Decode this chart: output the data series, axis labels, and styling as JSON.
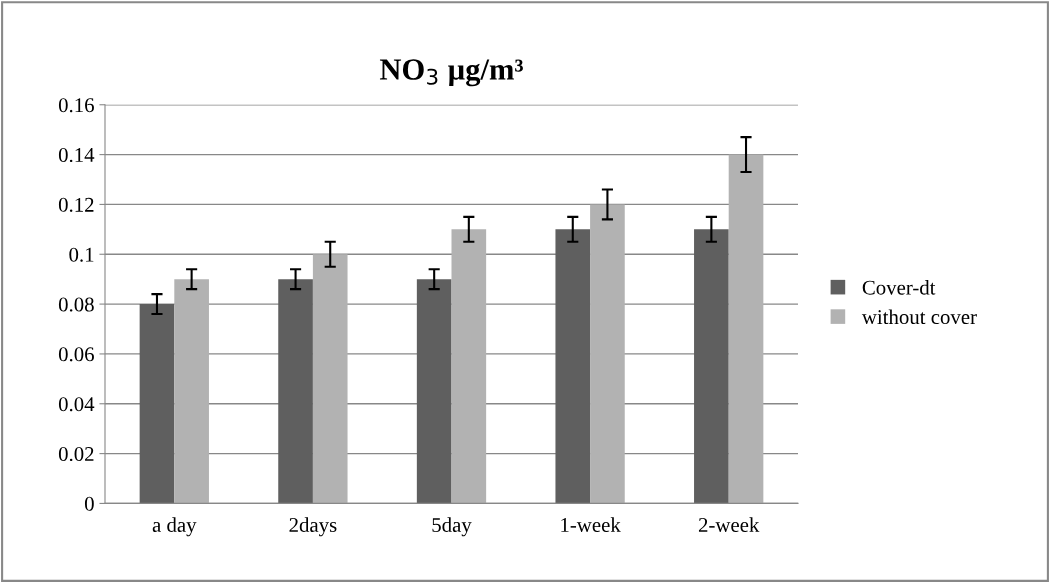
{
  "chart_data": {
    "type": "bar",
    "title": "NO$_{3}$ µg/m³",
    "categories": [
      "a day",
      "2days",
      "5day",
      "1-week",
      "2-week"
    ],
    "series": [
      {
        "name": "Cover-dt",
        "color": "#5f5f5f",
        "values": [
          0.08,
          0.09,
          0.09,
          0.11,
          0.11
        ],
        "errors": [
          0.004,
          0.004,
          0.004,
          0.005,
          0.005
        ]
      },
      {
        "name": "without cover",
        "color": "#b2b2b2",
        "values": [
          0.09,
          0.1,
          0.11,
          0.12,
          0.14
        ],
        "errors": [
          0.004,
          0.005,
          0.005,
          0.006,
          0.007
        ]
      }
    ],
    "ylim": [
      0,
      0.16
    ],
    "yticks": [
      0,
      0.02,
      0.04,
      0.06,
      0.08,
      0.1,
      0.12,
      0.14,
      0.16
    ],
    "grid": "y",
    "legend": "right"
  }
}
